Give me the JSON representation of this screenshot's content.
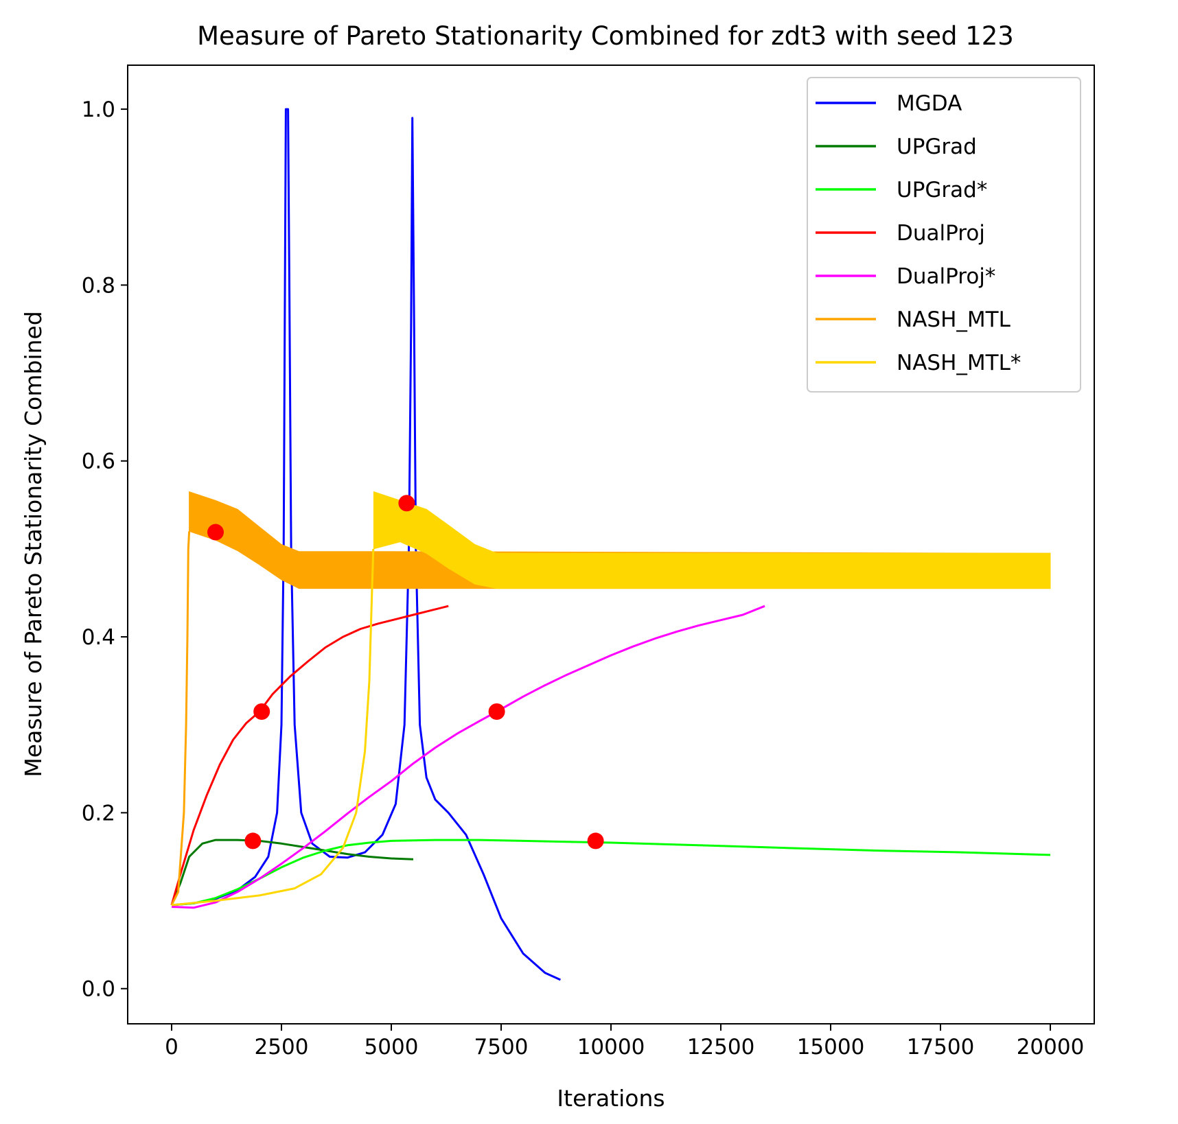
{
  "chart_data": {
    "type": "line",
    "title": "Measure of Pareto Stationarity Combined for zdt3 with seed 123",
    "xlabel": "Iterations",
    "ylabel": "Measure of Pareto Stationarity Combined",
    "xlim": [
      -1000,
      21000
    ],
    "ylim": [
      -0.04,
      1.05
    ],
    "xticks": [
      0,
      2500,
      5000,
      7500,
      10000,
      12500,
      15000,
      17500,
      20000
    ],
    "xtick_labels": [
      "0",
      "2500",
      "5000",
      "7500",
      "10000",
      "12500",
      "15000",
      "17500",
      "20000"
    ],
    "yticks": [
      0.0,
      0.2,
      0.4,
      0.6,
      0.8,
      1.0
    ],
    "ytick_labels": [
      "0.0",
      "0.2",
      "0.4",
      "0.6",
      "0.8",
      "1.0"
    ],
    "grid": false,
    "legend_position": "top-right",
    "series": [
      {
        "name": "MGDA",
        "color": "#0000ff",
        "points": [
          [
            0,
            0.095
          ],
          [
            500,
            0.097
          ],
          [
            1000,
            0.102
          ],
          [
            1500,
            0.112
          ],
          [
            1900,
            0.127
          ],
          [
            2200,
            0.15
          ],
          [
            2400,
            0.2
          ],
          [
            2500,
            0.3
          ],
          [
            2550,
            0.5
          ],
          [
            2580,
            0.8
          ],
          [
            2600,
            1.0
          ],
          [
            2650,
            1.0
          ],
          [
            2680,
            0.8
          ],
          [
            2720,
            0.5
          ],
          [
            2800,
            0.3
          ],
          [
            2950,
            0.2
          ],
          [
            3200,
            0.165
          ],
          [
            3600,
            0.15
          ],
          [
            4000,
            0.149
          ],
          [
            4400,
            0.155
          ],
          [
            4800,
            0.175
          ],
          [
            5100,
            0.21
          ],
          [
            5300,
            0.3
          ],
          [
            5400,
            0.5
          ],
          [
            5450,
            0.75
          ],
          [
            5480,
            0.99
          ],
          [
            5520,
            0.75
          ],
          [
            5560,
            0.5
          ],
          [
            5650,
            0.3
          ],
          [
            5800,
            0.24
          ],
          [
            6000,
            0.215
          ],
          [
            6300,
            0.2
          ],
          [
            6700,
            0.175
          ],
          [
            7100,
            0.13
          ],
          [
            7500,
            0.08
          ],
          [
            8000,
            0.04
          ],
          [
            8500,
            0.018
          ],
          [
            8850,
            0.01
          ]
        ]
      },
      {
        "name": "UPGrad",
        "color": "#007a00",
        "points": [
          [
            0,
            0.095
          ],
          [
            200,
            0.12
          ],
          [
            400,
            0.15
          ],
          [
            700,
            0.165
          ],
          [
            1000,
            0.169
          ],
          [
            1500,
            0.169
          ],
          [
            2000,
            0.168
          ],
          [
            2500,
            0.165
          ],
          [
            3000,
            0.161
          ],
          [
            3500,
            0.157
          ],
          [
            4000,
            0.153
          ],
          [
            4500,
            0.15
          ],
          [
            5000,
            0.148
          ],
          [
            5500,
            0.147
          ]
        ]
      },
      {
        "name": "UPGrad*",
        "color": "#00ff00",
        "points": [
          [
            0,
            0.095
          ],
          [
            500,
            0.097
          ],
          [
            1000,
            0.103
          ],
          [
            1500,
            0.113
          ],
          [
            2000,
            0.125
          ],
          [
            2500,
            0.138
          ],
          [
            3000,
            0.149
          ],
          [
            3500,
            0.157
          ],
          [
            4000,
            0.163
          ],
          [
            4500,
            0.166
          ],
          [
            5000,
            0.168
          ],
          [
            6000,
            0.169
          ],
          [
            7000,
            0.169
          ],
          [
            8000,
            0.168
          ],
          [
            9000,
            0.167
          ],
          [
            10000,
            0.166
          ],
          [
            12000,
            0.163
          ],
          [
            14000,
            0.16
          ],
          [
            16000,
            0.157
          ],
          [
            18000,
            0.155
          ],
          [
            20000,
            0.152
          ]
        ]
      },
      {
        "name": "DualProj",
        "color": "#ff0000",
        "points": [
          [
            0,
            0.095
          ],
          [
            200,
            0.13
          ],
          [
            500,
            0.18
          ],
          [
            800,
            0.22
          ],
          [
            1100,
            0.255
          ],
          [
            1400,
            0.283
          ],
          [
            1700,
            0.302
          ],
          [
            2000,
            0.315
          ],
          [
            2300,
            0.335
          ],
          [
            2700,
            0.355
          ],
          [
            3100,
            0.372
          ],
          [
            3500,
            0.388
          ],
          [
            3900,
            0.4
          ],
          [
            4300,
            0.409
          ],
          [
            4700,
            0.415
          ],
          [
            5100,
            0.42
          ],
          [
            5500,
            0.425
          ],
          [
            5900,
            0.43
          ],
          [
            6300,
            0.435
          ]
        ]
      },
      {
        "name": "DualProj*",
        "color": "#ff00ff",
        "points": [
          [
            0,
            0.093
          ],
          [
            500,
            0.092
          ],
          [
            1000,
            0.098
          ],
          [
            1500,
            0.11
          ],
          [
            2000,
            0.125
          ],
          [
            2500,
            0.142
          ],
          [
            3000,
            0.16
          ],
          [
            3500,
            0.179
          ],
          [
            4000,
            0.199
          ],
          [
            4500,
            0.218
          ],
          [
            5000,
            0.236
          ],
          [
            5500,
            0.256
          ],
          [
            6000,
            0.274
          ],
          [
            6500,
            0.29
          ],
          [
            7000,
            0.304
          ],
          [
            7400,
            0.315
          ],
          [
            8000,
            0.332
          ],
          [
            8500,
            0.345
          ],
          [
            9000,
            0.357
          ],
          [
            9500,
            0.368
          ],
          [
            10000,
            0.379
          ],
          [
            10500,
            0.389
          ],
          [
            11000,
            0.398
          ],
          [
            11500,
            0.406
          ],
          [
            12000,
            0.413
          ],
          [
            12500,
            0.419
          ],
          [
            13000,
            0.425
          ],
          [
            13500,
            0.435
          ]
        ]
      },
      {
        "name": "NASH_MTL",
        "color": "#ffa500",
        "band": true,
        "points": [
          [
            0,
            0.095
          ],
          [
            150,
            0.11
          ],
          [
            280,
            0.2
          ],
          [
            330,
            0.3
          ],
          [
            360,
            0.4
          ],
          [
            380,
            0.5
          ],
          [
            400,
            0.52
          ]
        ],
        "band_lower": [
          [
            400,
            0.52
          ],
          [
            1000,
            0.51
          ],
          [
            1500,
            0.498
          ],
          [
            2000,
            0.482
          ],
          [
            2500,
            0.465
          ],
          [
            2900,
            0.455
          ],
          [
            20000,
            0.455
          ]
        ],
        "band_upper": [
          [
            400,
            0.565
          ],
          [
            1000,
            0.555
          ],
          [
            1500,
            0.545
          ],
          [
            2000,
            0.525
          ],
          [
            2500,
            0.505
          ],
          [
            2900,
            0.497
          ],
          [
            5000,
            0.497
          ],
          [
            20000,
            0.495
          ]
        ]
      },
      {
        "name": "NASH_MTL*",
        "color": "#ffd700",
        "band": true,
        "points": [
          [
            0,
            0.095
          ],
          [
            1000,
            0.1
          ],
          [
            2000,
            0.106
          ],
          [
            2800,
            0.114
          ],
          [
            3400,
            0.13
          ],
          [
            3900,
            0.16
          ],
          [
            4200,
            0.2
          ],
          [
            4400,
            0.27
          ],
          [
            4500,
            0.35
          ],
          [
            4560,
            0.45
          ],
          [
            4590,
            0.5
          ]
        ],
        "band_lower": [
          [
            4600,
            0.5
          ],
          [
            5200,
            0.508
          ],
          [
            5800,
            0.495
          ],
          [
            6300,
            0.478
          ],
          [
            6900,
            0.46
          ],
          [
            7400,
            0.455
          ],
          [
            20000,
            0.455
          ]
        ],
        "band_upper": [
          [
            4600,
            0.565
          ],
          [
            5200,
            0.555
          ],
          [
            5800,
            0.545
          ],
          [
            6300,
            0.527
          ],
          [
            6900,
            0.505
          ],
          [
            7400,
            0.495
          ],
          [
            20000,
            0.495
          ]
        ]
      }
    ],
    "markers": {
      "color": "#ff0000",
      "points": [
        [
          1000,
          0.519
        ],
        [
          5350,
          0.552
        ],
        [
          2050,
          0.315
        ],
        [
          7400,
          0.315
        ],
        [
          1850,
          0.168
        ],
        [
          9650,
          0.168
        ]
      ]
    }
  }
}
